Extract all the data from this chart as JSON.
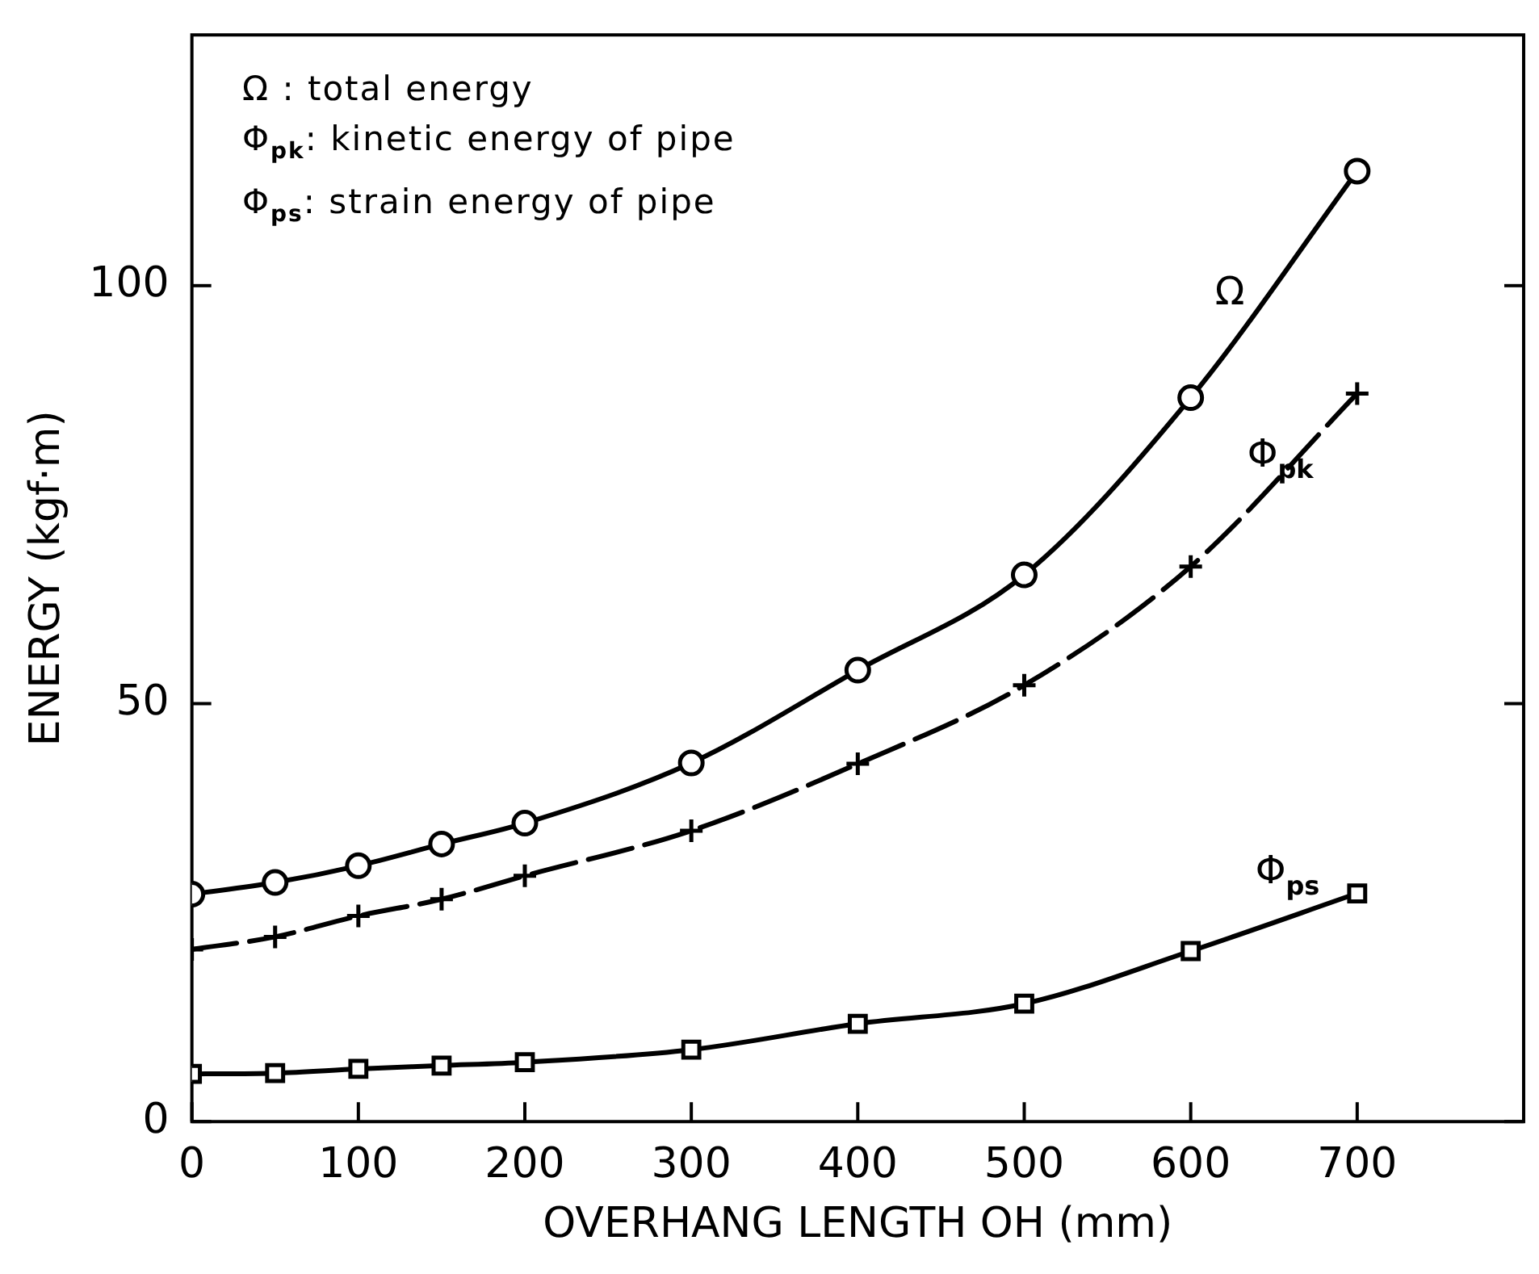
{
  "chart_data": {
    "type": "line",
    "xlabel": "OVERHANG LENGTH OH (mm)",
    "ylabel": "ENERGY (kgf·m)",
    "x": [
      0,
      50,
      100,
      150,
      200,
      300,
      400,
      500,
      600,
      700
    ],
    "series": [
      {
        "name": "Ω",
        "color": "#000000",
        "marker": "circle",
        "line_style": "solid",
        "values": [
          27.2,
          28.6,
          30.6,
          33.2,
          35.7,
          42.9,
          54.0,
          65.4,
          86.6,
          113.7
        ]
      },
      {
        "name": "Φ$_{pk}$",
        "color": "#000000",
        "marker": "cross",
        "line_style": "dashed",
        "values": [
          20.6,
          22.1,
          24.6,
          26.6,
          29.4,
          34.8,
          42.8,
          52.2,
          66.4,
          87.1
        ]
      },
      {
        "name": "Φ$_{ps}$",
        "color": "#000000",
        "marker": "square",
        "line_style": "solid",
        "values": [
          5.7,
          5.8,
          6.3,
          6.7,
          7.1,
          8.6,
          11.7,
          14.1,
          20.4,
          27.3
        ]
      }
    ],
    "xlim": [
      0,
      800
    ],
    "xticks": [
      0,
      100,
      200,
      300,
      400,
      500,
      600,
      700
    ],
    "ylim": [
      0,
      130
    ],
    "yticks": [
      0,
      50,
      100
    ],
    "grid": false,
    "legend": false,
    "annotations": [
      "Ω : total energy",
      "Φ$_{pk}$: kinetic energy of pipe",
      "Φ$_{ps}$: strain energy of pipe"
    ]
  }
}
